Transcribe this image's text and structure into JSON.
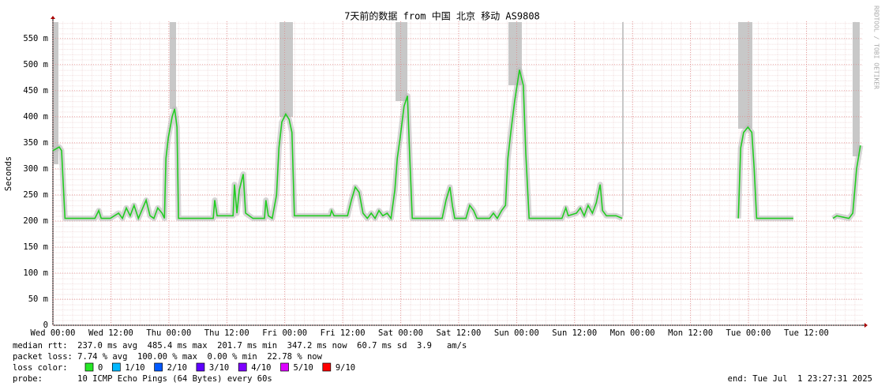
{
  "chart_data": {
    "type": "line",
    "title": "7天前的数据 from 中国 北京 移动 AS9808",
    "y_label": "Seconds",
    "side_text": "RRDTOOL / TOBI OETIKER",
    "xlim": [
      0,
      167.7
    ],
    "xticks": [
      {
        "value": 0,
        "label": "Wed 00:00"
      },
      {
        "value": 12,
        "label": "Wed 12:00"
      },
      {
        "value": 24,
        "label": "Thu 00:00"
      },
      {
        "value": 36,
        "label": "Thu 12:00"
      },
      {
        "value": 48,
        "label": "Fri 00:00"
      },
      {
        "value": 60,
        "label": "Fri 12:00"
      },
      {
        "value": 72,
        "label": "Sat 00:00"
      },
      {
        "value": 84,
        "label": "Sat 12:00"
      },
      {
        "value": 96,
        "label": "Sun 00:00"
      },
      {
        "value": 108,
        "label": "Sun 12:00"
      },
      {
        "value": 120,
        "label": "Mon 00:00"
      },
      {
        "value": 132,
        "label": "Mon 12:00"
      },
      {
        "value": 144,
        "label": "Tue 00:00"
      },
      {
        "value": 156,
        "label": "Tue 12:00"
      }
    ],
    "ylim": [
      0,
      0.583
    ],
    "yticks": [
      0,
      {
        "value": 0.05,
        "label": "50 m"
      },
      {
        "value": 0.1,
        "label": "100 m"
      },
      {
        "value": 0.15,
        "label": "150 m"
      },
      {
        "value": 0.2,
        "label": "200 m"
      },
      {
        "value": 0.25,
        "label": "250 m"
      },
      {
        "value": 0.3,
        "label": "300 m"
      },
      {
        "value": 0.35,
        "label": "350 m"
      },
      {
        "value": 0.4,
        "label": "400 m"
      },
      {
        "value": 0.45,
        "label": "450 m"
      },
      {
        "value": 0.5,
        "label": "500 m"
      },
      {
        "value": 0.55,
        "label": "550 m"
      }
    ],
    "grid": true,
    "x": [
      0,
      1.3,
      1.8,
      2.5,
      8.7,
      9.5,
      10.0,
      11.9,
      13.6,
      14.4,
      15.2,
      16.0,
      16.8,
      17.7,
      19.3,
      20.1,
      20.9,
      21.7,
      22.6,
      23.1,
      23.4,
      23.9,
      24.7,
      25.2,
      25.7,
      26.0,
      33.2,
      33.5,
      34.0,
      37.3,
      37.6,
      38.1,
      38.6,
      39.4,
      39.9,
      41.4,
      43.8,
      44.1,
      44.6,
      45.4,
      46.3,
      46.8,
      47.4,
      48.2,
      48.9,
      49.5,
      50.0,
      57.4,
      57.7,
      58.2,
      61.0,
      61.8,
      62.6,
      63.4,
      64.2,
      65.1,
      65.9,
      66.7,
      67.5,
      68.3,
      69.2,
      70.0,
      70.8,
      71.3,
      71.9,
      72.7,
      73.4,
      73.9,
      74.4,
      80.6,
      81.4,
      82.2,
      82.7,
      83.2,
      85.5,
      86.3,
      87.1,
      87.8,
      90.4,
      91.2,
      92.0,
      92.9,
      93.7,
      94.2,
      94.8,
      95.6,
      96.6,
      97.4,
      97.9,
      98.6,
      105.4,
      106.2,
      106.7,
      108.4,
      109.2,
      110.0,
      110.8,
      111.7,
      112.5,
      113.3,
      113.8,
      114.6,
      116.6,
      117.9,
      120,
      141.9,
      142.4,
      143.0,
      143.9,
      144.7,
      145.2,
      145.7,
      153.3,
      154,
      161.5,
      162.3,
      164.8,
      165.6,
      166.4,
      167.2
    ],
    "series": [
      {
        "name": "median rtt",
        "color": "#22cc22",
        "values": [
          0.335,
          0.342,
          0.335,
          0.205,
          0.205,
          0.22,
          0.205,
          0.205,
          0.215,
          0.205,
          0.225,
          0.21,
          0.23,
          0.205,
          0.24,
          0.21,
          0.205,
          0.225,
          0.215,
          0.205,
          0.32,
          0.36,
          0.4,
          0.415,
          0.38,
          0.205,
          0.205,
          0.24,
          0.21,
          0.21,
          0.27,
          0.215,
          0.26,
          0.29,
          0.215,
          0.205,
          0.205,
          0.24,
          0.21,
          0.205,
          0.25,
          0.34,
          0.39,
          0.405,
          0.395,
          0.37,
          0.21,
          0.21,
          0.22,
          0.21,
          0.21,
          0.24,
          0.265,
          0.255,
          0.215,
          0.205,
          0.215,
          0.205,
          0.22,
          0.21,
          0.215,
          0.205,
          0.26,
          0.32,
          0.36,
          0.42,
          0.44,
          0.32,
          0.205,
          0.205,
          0.24,
          0.265,
          0.23,
          0.205,
          0.205,
          0.23,
          0.22,
          0.205,
          0.205,
          0.215,
          0.205,
          0.22,
          0.23,
          0.32,
          0.37,
          0.43,
          0.49,
          0.46,
          0.33,
          0.205,
          0.205,
          0.225,
          0.21,
          0.215,
          0.225,
          0.21,
          0.23,
          0.215,
          0.235,
          0.27,
          0.22,
          0.21,
          0.21,
          0.205,
          null,
          0.205,
          0.34,
          0.37,
          0.38,
          0.37,
          0.3,
          0.205,
          0.205,
          null,
          0.205,
          0.21,
          0.205,
          0.215,
          0.3,
          0.345
        ]
      }
    ],
    "stats": [
      "median rtt:  237.0 ms avg  485.4 ms max  201.7 ms min  347.2 ms now  60.7 ms sd  3.9   am/s",
      "packet loss: 7.74 % avg  100.00 % max  0.00 % min  22.78 % now"
    ],
    "loss_label": "loss color:",
    "loss_colors": [
      {
        "label": "0",
        "color": "#26e826"
      },
      {
        "label": "1/10",
        "color": "#00b8ff"
      },
      {
        "label": "2/10",
        "color": "#0059ff"
      },
      {
        "label": "3/10",
        "color": "#5e00ff"
      },
      {
        "label": "4/10",
        "color": "#7e00ff"
      },
      {
        "label": "5/10",
        "color": "#dd00ff"
      },
      {
        "label": "9/10",
        "color": "#ff0000"
      }
    ],
    "probe": "probe:       10 ICMP Echo Pings (64 Bytes) every 60s",
    "end": "end: Tue Jul  1 23:27:31 2025"
  }
}
